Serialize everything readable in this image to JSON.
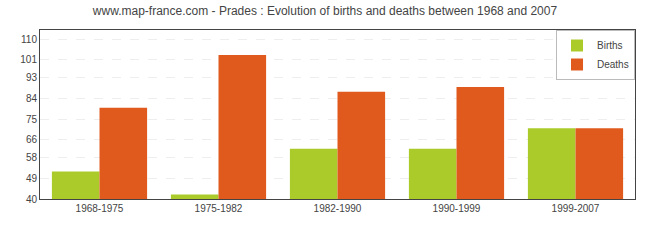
{
  "chart_data": {
    "type": "bar",
    "title": "www.map-france.com - Prades : Evolution of births and deaths between 1968 and 2007",
    "categories": [
      "1968-1975",
      "1975-1982",
      "1982-1990",
      "1990-1999",
      "1999-2007"
    ],
    "series": [
      {
        "name": "Births",
        "color": "#aacb2a",
        "values": [
          52,
          42,
          62,
          62,
          71
        ]
      },
      {
        "name": "Deaths",
        "color": "#e05a1e",
        "values": [
          80,
          103,
          87,
          89,
          71
        ]
      }
    ],
    "ylim": [
      40,
      114
    ],
    "yticks": [
      40,
      49,
      58,
      66,
      75,
      84,
      93,
      101,
      110
    ],
    "grid": true,
    "legend": "upper right"
  }
}
